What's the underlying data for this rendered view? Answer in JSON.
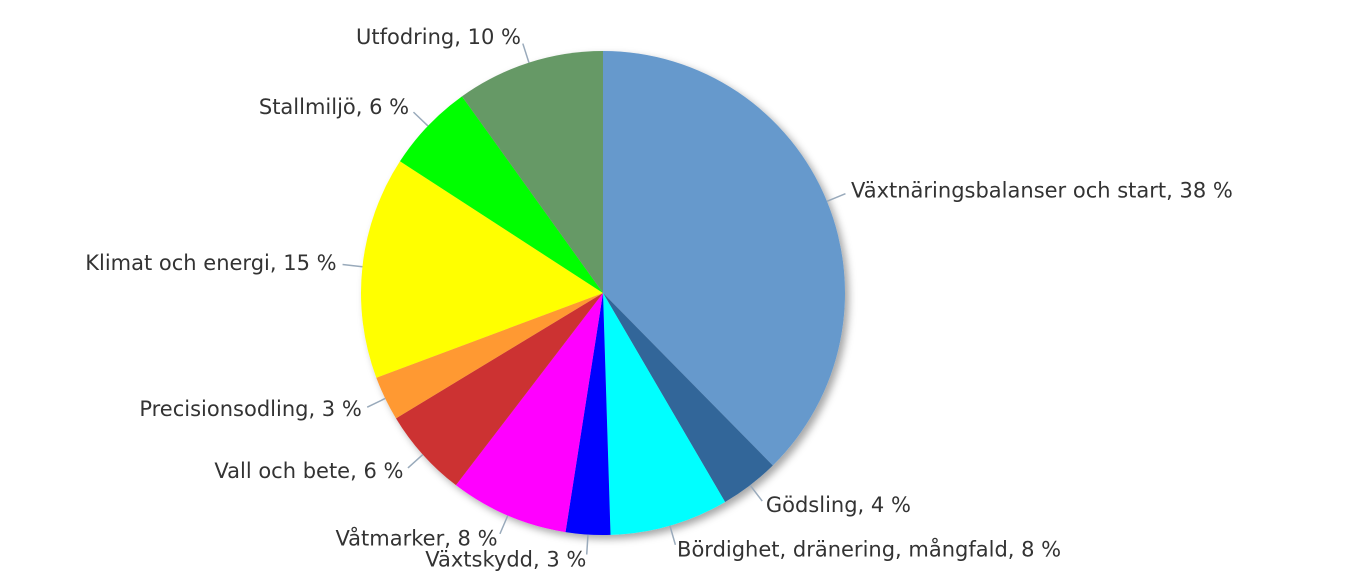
{
  "chart_data": {
    "type": "pie",
    "values": [
      38,
      4,
      8,
      3,
      8,
      6,
      3,
      15,
      6,
      10
    ],
    "value_labels": [
      "Växtnäringsbalanser och start, 38 %",
      "Gödsling, 4 %",
      "Bördighet, dränering, mångfald, 8 %",
      "Växtskydd, 3 %",
      "Våtmarker, 8 %",
      "Vall och bete, 6 %",
      "Precisionsodling, 3 %",
      "Klimat och energi, 15 %",
      "Stallmiljö, 6 %",
      "Utfodring, 10 %"
    ],
    "colors": [
      "#6699cc",
      "#336699",
      "#00ffff",
      "#0000ff",
      "#ff00ff",
      "#cc3333",
      "#ff9933",
      "#ffff00",
      "#00ff00",
      "#669966"
    ]
  }
}
